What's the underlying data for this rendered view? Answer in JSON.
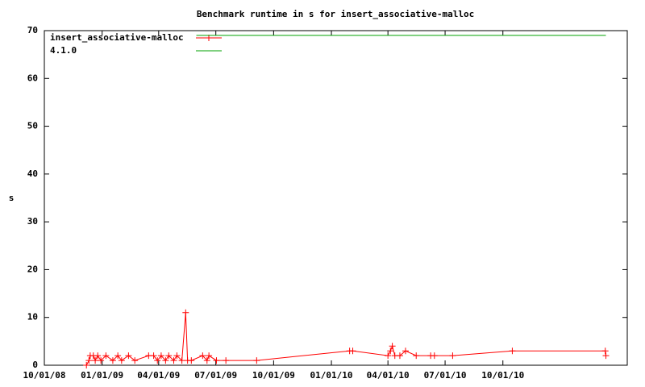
{
  "chart_data": {
    "type": "line",
    "title": "Benchmark runtime in s for insert_associative-malloc",
    "y_label": "s",
    "xlim": [
      "2008-10-01",
      "2011-04-17"
    ],
    "xticks": [
      {
        "value": "2008-10-01",
        "label": "10/01/08"
      },
      {
        "value": "2009-01-01",
        "label": "01/01/09"
      },
      {
        "value": "2009-04-01",
        "label": "04/01/09"
      },
      {
        "value": "2009-07-01",
        "label": "07/01/09"
      },
      {
        "value": "2009-10-01",
        "label": "10/01/09"
      },
      {
        "value": "2010-01-01",
        "label": "01/01/10"
      },
      {
        "value": "2010-04-01",
        "label": "04/01/10"
      },
      {
        "value": "2010-07-01",
        "label": "07/01/10"
      },
      {
        "value": "2010-10-01",
        "label": "10/01/10"
      }
    ],
    "ylim": [
      0,
      70
    ],
    "yticks": [
      0,
      10,
      20,
      30,
      40,
      50,
      60,
      70
    ],
    "legend": "top-left",
    "series": [
      {
        "name": "insert_associative-malloc",
        "color": "#ff0000",
        "markers": true,
        "x": [
          "2008-12-07",
          "2008-12-11",
          "2008-12-13",
          "2008-12-18",
          "2008-12-21",
          "2008-12-25",
          "2008-12-30",
          "2009-01-07",
          "2009-01-18",
          "2009-01-26",
          "2009-02-01",
          "2009-02-12",
          "2009-02-22",
          "2009-03-16",
          "2009-03-24",
          "2009-03-30",
          "2009-04-05",
          "2009-04-12",
          "2009-04-17",
          "2009-04-25",
          "2009-04-30",
          "2009-05-08",
          "2009-05-14",
          "2009-05-17",
          "2009-05-23",
          "2009-06-10",
          "2009-06-17",
          "2009-06-20",
          "2009-07-02",
          "2009-07-17",
          "2009-09-04",
          "2010-01-30",
          "2010-02-04",
          "2010-04-01",
          "2010-04-05",
          "2010-04-08",
          "2010-04-12",
          "2010-04-20",
          "2010-04-29",
          "2010-05-16",
          "2010-06-08",
          "2010-06-14",
          "2010-07-13",
          "2010-10-16",
          "2011-03-13",
          "2011-03-14"
        ],
        "values": [
          0,
          1,
          2,
          2,
          1,
          2,
          1,
          2,
          1,
          2,
          1,
          2,
          1,
          2,
          2,
          1,
          2,
          1,
          2,
          1,
          2,
          1,
          11,
          1,
          1,
          2,
          1,
          2,
          1,
          1,
          1,
          3,
          3,
          2,
          3,
          4,
          2,
          2,
          3,
          2,
          2,
          2,
          2,
          3,
          3,
          2
        ]
      },
      {
        "name": "4.1.0",
        "color": "#00a000",
        "markers": false,
        "x": [
          "2009-05-31",
          "2011-03-14"
        ],
        "values": [
          69,
          69
        ]
      }
    ]
  }
}
